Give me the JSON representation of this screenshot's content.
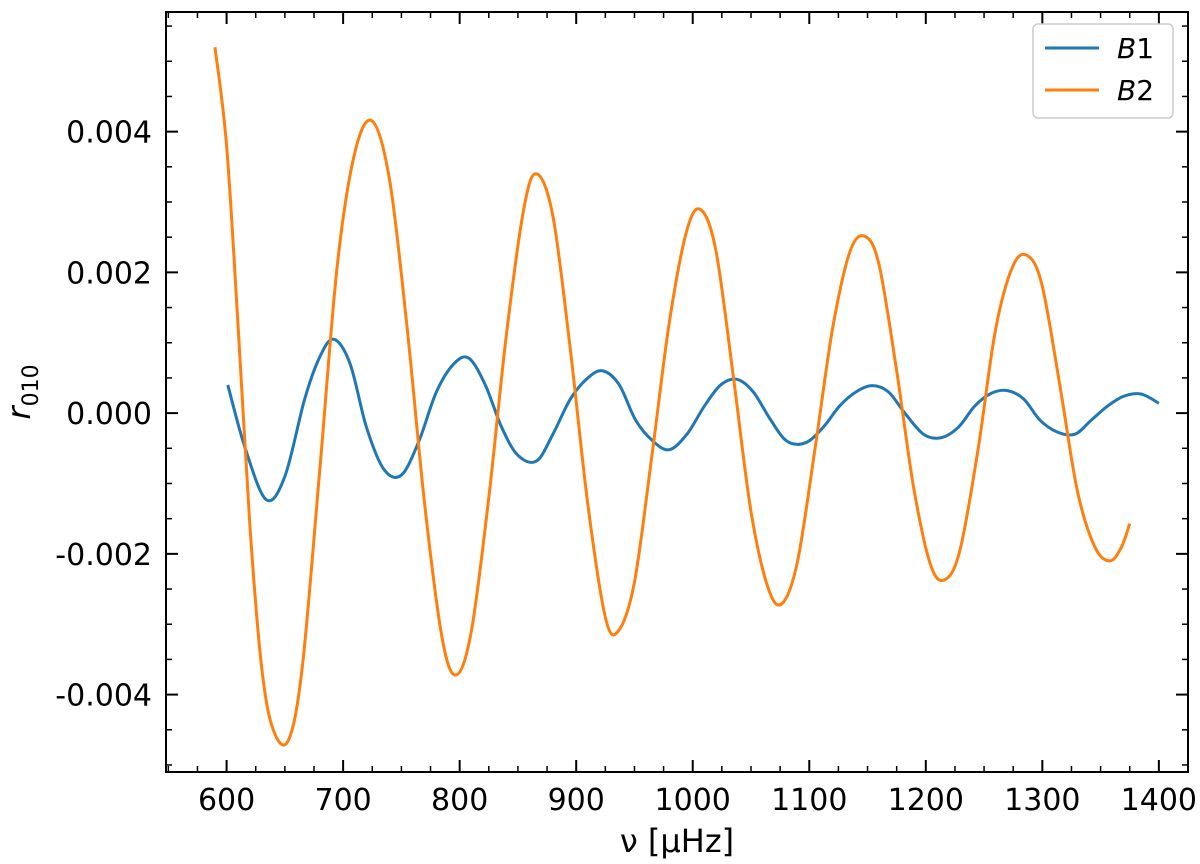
{
  "chart_data": {
    "type": "line",
    "xlabel": "ν [μHz]",
    "ylabel": "r010",
    "ylabel_parts": {
      "base": "r",
      "sub": "010"
    },
    "xlim": [
      548,
      1425
    ],
    "ylim": [
      -0.0051,
      0.0057
    ],
    "xticks": [
      600,
      700,
      800,
      900,
      1000,
      1100,
      1200,
      1300,
      1400
    ],
    "xtick_labels": [
      "600",
      "700",
      "800",
      "900",
      "1000",
      "1100",
      "1200",
      "1300",
      "1400"
    ],
    "yticks": [
      -0.004,
      -0.002,
      0.0,
      0.002,
      0.004
    ],
    "ytick_labels": [
      "-0.004",
      "-0.002",
      "0.000",
      "0.002",
      "0.004"
    ],
    "grid": false,
    "legend_position": "top-right",
    "series": [
      {
        "name": "B1",
        "name_parts": {
          "italic": "B",
          "plain": "1"
        },
        "color": "#1f77b4",
        "x": [
          601,
          616,
          634,
          650,
          667,
          680,
          692,
          706,
          720,
          735,
          750,
          765,
          780,
          795,
          808,
          822,
          836,
          850,
          866,
          880,
          895,
          910,
          923,
          937,
          951,
          966,
          980,
          995,
          1010,
          1024,
          1038,
          1052,
          1067,
          1081,
          1097,
          1112,
          1126,
          1140,
          1154,
          1168,
          1182,
          1198,
          1213,
          1228,
          1242,
          1256,
          1270,
          1284,
          1298,
          1313,
          1328,
          1342,
          1356,
          1370,
          1385,
          1400
        ],
        "y": [
          0.0004,
          -0.0005,
          -0.00123,
          -0.0009,
          0.0002,
          0.0008,
          0.00105,
          0.0007,
          -0.0002,
          -0.0008,
          -0.00088,
          -0.0004,
          0.0003,
          0.0007,
          0.00078,
          0.0004,
          -0.0002,
          -0.0006,
          -0.00068,
          -0.0003,
          0.0002,
          0.0005,
          0.0006,
          0.0004,
          -0.0001,
          -0.0004,
          -0.00052,
          -0.0003,
          0.0001,
          0.0004,
          0.00048,
          0.0003,
          -0.0001,
          -0.0004,
          -0.00042,
          -0.0002,
          0.0001,
          0.0003,
          0.00039,
          0.0003,
          0.0,
          -0.0003,
          -0.00035,
          -0.0002,
          0.0001,
          0.00028,
          0.00032,
          0.0002,
          -0.0001,
          -0.00027,
          -0.0003,
          -0.0001,
          0.0001,
          0.00024,
          0.00027,
          0.00014
        ]
      },
      {
        "name": "B2",
        "name_parts": {
          "italic": "B",
          "plain": "2"
        },
        "color": "#ff7f0e",
        "x": [
          590,
          600,
          610,
          620,
          630,
          640,
          653,
          665,
          680,
          695,
          710,
          725,
          740,
          755,
          770,
          785,
          797,
          810,
          825,
          840,
          855,
          866,
          880,
          895,
          910,
          925,
          936,
          950,
          965,
          980,
          995,
          1007,
          1020,
          1035,
          1050,
          1065,
          1077,
          1090,
          1105,
          1120,
          1135,
          1148,
          1160,
          1175,
          1190,
          1205,
          1218,
          1230,
          1245,
          1260,
          1275,
          1288,
          1300,
          1315,
          1330,
          1345,
          1358,
          1368,
          1375
        ],
        "y": [
          0.0052,
          0.0038,
          0.0012,
          -0.0016,
          -0.0036,
          -0.0045,
          -0.00465,
          -0.0036,
          -0.0008,
          0.0021,
          0.0037,
          0.00415,
          0.0033,
          0.0012,
          -0.0013,
          -0.0032,
          -0.00372,
          -0.0031,
          -0.0012,
          0.0011,
          0.0029,
          0.0034,
          0.0028,
          0.0009,
          -0.0013,
          -0.0029,
          -0.0031,
          -0.0024,
          -0.0006,
          0.0013,
          0.0026,
          0.00289,
          0.0023,
          0.0005,
          -0.0014,
          -0.0025,
          -0.0027,
          -0.0021,
          -0.0005,
          0.0012,
          0.0023,
          0.00251,
          0.0021,
          0.0006,
          -0.0011,
          -0.0022,
          -0.00235,
          -0.0019,
          -0.0005,
          0.0012,
          0.0021,
          0.00223,
          0.0018,
          0.0004,
          -0.0011,
          -0.0019,
          -0.0021,
          -0.0019,
          -0.00157
        ]
      }
    ]
  }
}
